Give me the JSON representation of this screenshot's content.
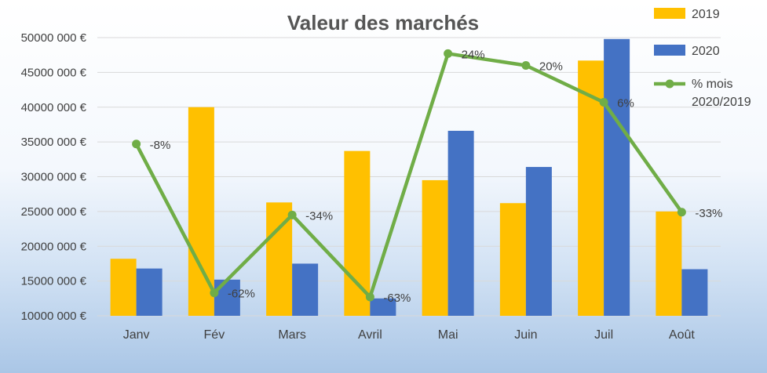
{
  "chart_data": {
    "type": "bar",
    "title": "Valeur des marchés",
    "categories": [
      "Janv",
      "Fév",
      "Mars",
      "Avril",
      "Mai",
      "Juin",
      "Juil",
      "Août"
    ],
    "series": [
      {
        "name": "2019",
        "type": "bar",
        "color": "#FFC000",
        "values": [
          18200,
          40000,
          26300,
          33700,
          29500,
          26200,
          46700,
          25000
        ]
      },
      {
        "name": "2020",
        "type": "bar",
        "color": "#4472C4",
        "values": [
          16800,
          15200,
          17500,
          12500,
          36600,
          31400,
          49800,
          16700
        ]
      },
      {
        "name": "% mois 2020/2019",
        "legend_lines": [
          "% mois",
          "2020/2019"
        ],
        "type": "line",
        "color": "#70AD47",
        "labels": [
          "-8%",
          "-62%",
          "-34%",
          "-63%",
          "24%",
          "20%",
          "6%",
          "-33%"
        ],
        "plot_values": [
          34700,
          13300,
          24500,
          12700,
          47700,
          46000,
          40700,
          24900
        ]
      }
    ],
    "yaxis": {
      "min": 10000,
      "max": 50000,
      "step": 5000,
      "tick_labels": [
        "10000 000 €",
        "15000 000 €",
        "20000 000 €",
        "25000 000 €",
        "30000 000 €",
        "35000 000 €",
        "40000 000 €",
        "45000 000 €",
        "50000 000 €"
      ]
    },
    "grid": true,
    "legend_position": "right"
  }
}
